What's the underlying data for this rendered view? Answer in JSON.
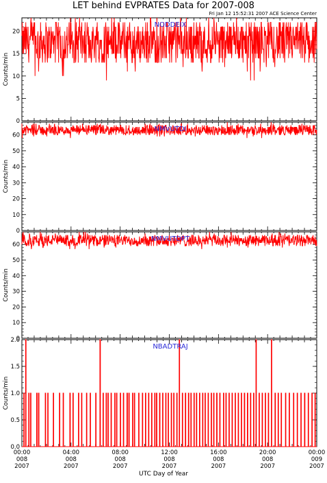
{
  "page": {
    "title": "LET behind EVPRATES Data for 2007-008",
    "stamp": "Fri Jan 12 15:52:31 2007 ACE Science Center",
    "xlabel": "UTC Day of Year"
  },
  "colors": {
    "series": "#ff0000",
    "panel_title": "#2a2ad8",
    "axes": "#000000"
  },
  "chart_data": [
    {
      "type": "line",
      "title": "NODDEIX",
      "ylabel": "Counts/min",
      "ylim": [
        0,
        23
      ],
      "yticks": [
        0,
        5,
        10,
        15,
        20
      ],
      "xlim": [
        0,
        24
      ],
      "series": [
        {
          "values_summary": {
            "typical_low": 13,
            "typical_high": 22,
            "mean": 17,
            "min": 9,
            "max": 23
          },
          "notable_points": [
            {
              "x": 18.6,
              "y": 9
            },
            {
              "x": 19.4,
              "y": 10.5
            },
            {
              "x": 4.7,
              "y": 23
            },
            {
              "x": 7.3,
              "y": 23
            },
            {
              "x": 12.9,
              "y": 23
            }
          ]
        }
      ]
    },
    {
      "type": "line",
      "title": "NMVUTDI",
      "ylabel": "Counts/min",
      "ylim": [
        0,
        68
      ],
      "yticks": [
        0,
        10,
        20,
        30,
        40,
        50,
        60
      ],
      "xlim": [
        0,
        24
      ],
      "series": [
        {
          "values_summary": {
            "typical_low": 60,
            "typical_high": 66,
            "mean": 63,
            "min": 58,
            "max": 68
          }
        }
      ]
    },
    {
      "type": "line",
      "title": "NMVUTDPT",
      "ylabel": "Counts/min",
      "ylim": [
        0,
        68
      ],
      "yticks": [
        0,
        10,
        20,
        30,
        40,
        50,
        60
      ],
      "xlim": [
        0,
        24
      ],
      "series": [
        {
          "values_summary": {
            "typical_low": 59,
            "typical_high": 66,
            "mean": 63,
            "min": 57,
            "max": 69
          }
        }
      ]
    },
    {
      "type": "line",
      "title": "NBADTRAJ",
      "ylabel": "Counts/min",
      "ylim": [
        0,
        2.0
      ],
      "yticks": [
        0.0,
        0.5,
        1.0,
        1.5,
        2.0
      ],
      "xlim": [
        0,
        24
      ],
      "series": [
        {
          "baseline": 0,
          "spikes_to_2": [
            0.3,
            6.35,
            12.8,
            19.05,
            20.3
          ],
          "spikes_to_1": [
            0.15,
            0.55,
            0.7,
            1.2,
            1.35,
            1.9,
            2.1,
            2.55,
            3.05,
            3.35,
            3.9,
            4.15,
            4.6,
            4.85,
            5.25,
            5.55,
            6.0,
            6.6,
            6.85,
            7.0,
            7.25,
            7.55,
            7.7,
            8.0,
            8.25,
            8.55,
            8.7,
            9.0,
            9.15,
            9.5,
            9.8,
            10.05,
            10.3,
            10.55,
            10.8,
            10.95,
            11.2,
            11.45,
            11.7,
            11.9,
            12.15,
            12.35,
            12.6,
            13.05,
            13.3,
            13.55,
            13.75,
            14.0,
            14.2,
            14.45,
            14.7,
            14.9,
            15.15,
            15.4,
            15.6,
            15.85,
            16.1,
            16.4,
            16.6,
            16.85,
            17.1,
            17.35,
            17.6,
            17.85,
            18.1,
            18.35,
            18.6,
            18.85,
            19.3,
            19.55,
            19.8,
            20.05,
            20.6,
            20.85,
            21.1,
            21.45,
            21.75,
            22.1,
            22.4,
            22.7,
            23.0,
            23.3,
            23.6,
            23.85
          ]
        }
      ]
    }
  ],
  "x_ticks": [
    {
      "time": "00:00",
      "day": "008",
      "year": "2007"
    },
    {
      "time": "04:00",
      "day": "008",
      "year": "2007"
    },
    {
      "time": "08:00",
      "day": "008",
      "year": "2007"
    },
    {
      "time": "12:00",
      "day": "008",
      "year": "2007"
    },
    {
      "time": "16:00",
      "day": "008",
      "year": "2007"
    },
    {
      "time": "20:00",
      "day": "008",
      "year": "2007"
    },
    {
      "time": "00:00",
      "day": "009",
      "year": "2007"
    }
  ]
}
